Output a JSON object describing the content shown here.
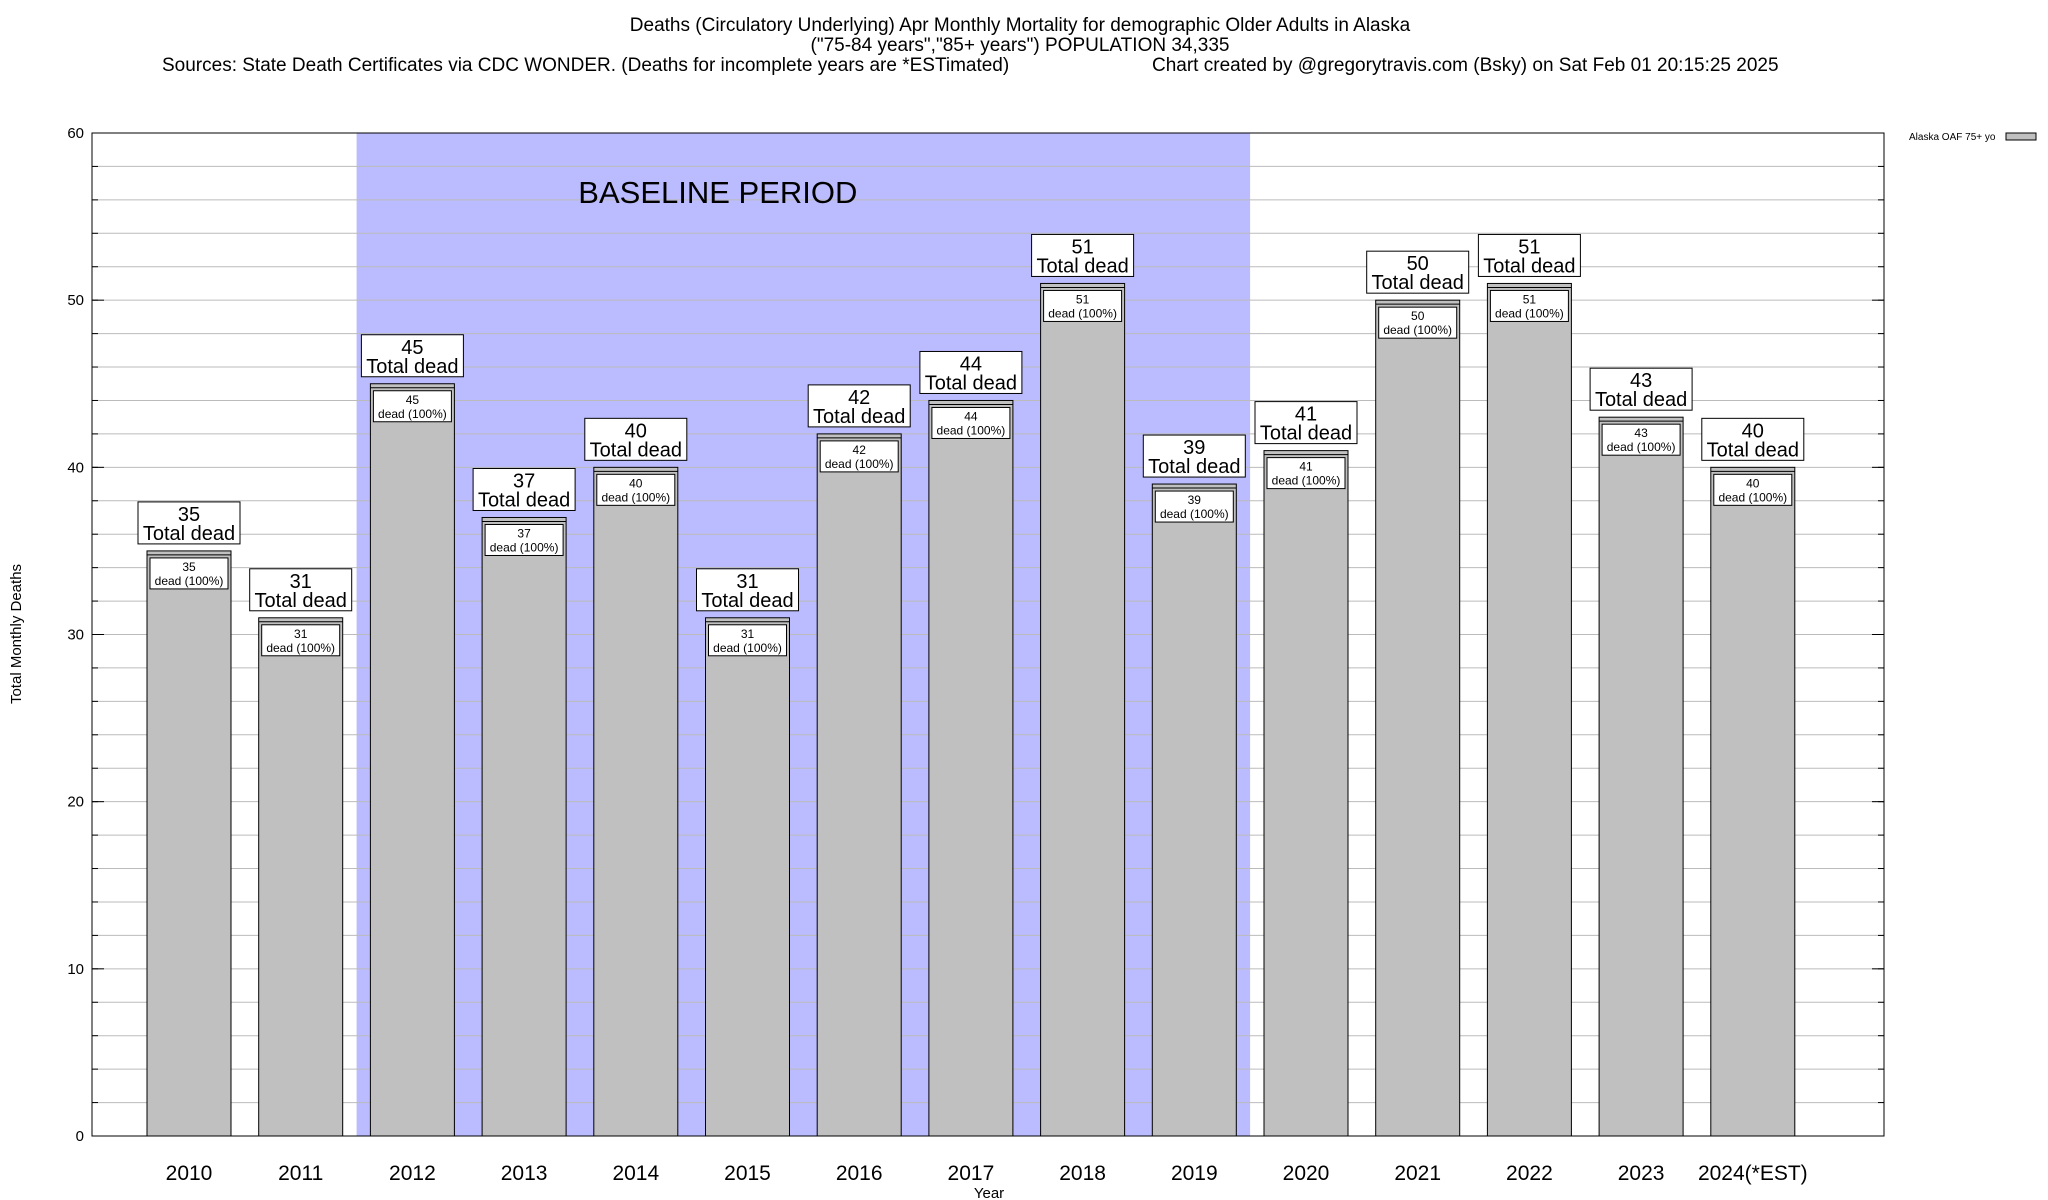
{
  "header": {
    "title_line1": "Deaths (Circulatory Underlying) Apr Monthly Mortality for demographic Older Adults in Alaska",
    "title_line2": "(\"75-84 years\",\"85+ years\") POPULATION 34,335",
    "sources": "Sources: State Death Certificates via CDC WONDER. (Deaths for incomplete years are *ESTimated)",
    "credit": "Chart created by @gregorytravis.com (Bsky) on Sat Feb 01 20:15:25 2025"
  },
  "legend": {
    "label": "Alaska OAF 75+ yo",
    "placement": "top-right"
  },
  "baseline": {
    "label": "BASELINE PERIOD",
    "from": "2012",
    "to": "2019",
    "color": "#bbbbff"
  },
  "colors": {
    "bar_fill": "#c0c0c0",
    "bar_stroke": "#000000"
  },
  "chart_data": {
    "type": "bar",
    "title": "Deaths (Circulatory Underlying) Apr Monthly Mortality for demographic Older Adults in Alaska",
    "xlabel": "Year",
    "ylabel": "Total Monthly Deaths",
    "ylim": [
      0,
      60
    ],
    "yticks": [
      0,
      10,
      20,
      30,
      40,
      50,
      60
    ],
    "grid": true,
    "categories": [
      "2010",
      "2011",
      "2012",
      "2013",
      "2014",
      "2015",
      "2016",
      "2017",
      "2018",
      "2019",
      "2020",
      "2021",
      "2022",
      "2023",
      "2024(*EST)"
    ],
    "series": [
      {
        "name": "Alaska OAF 75+ yo",
        "values": [
          35,
          31,
          45,
          37,
          40,
          31,
          42,
          44,
          51,
          39,
          41,
          50,
          51,
          43,
          40
        ]
      }
    ],
    "top_label_suffix": "Total dead",
    "inner_label_suffix": "dead (100%)"
  }
}
